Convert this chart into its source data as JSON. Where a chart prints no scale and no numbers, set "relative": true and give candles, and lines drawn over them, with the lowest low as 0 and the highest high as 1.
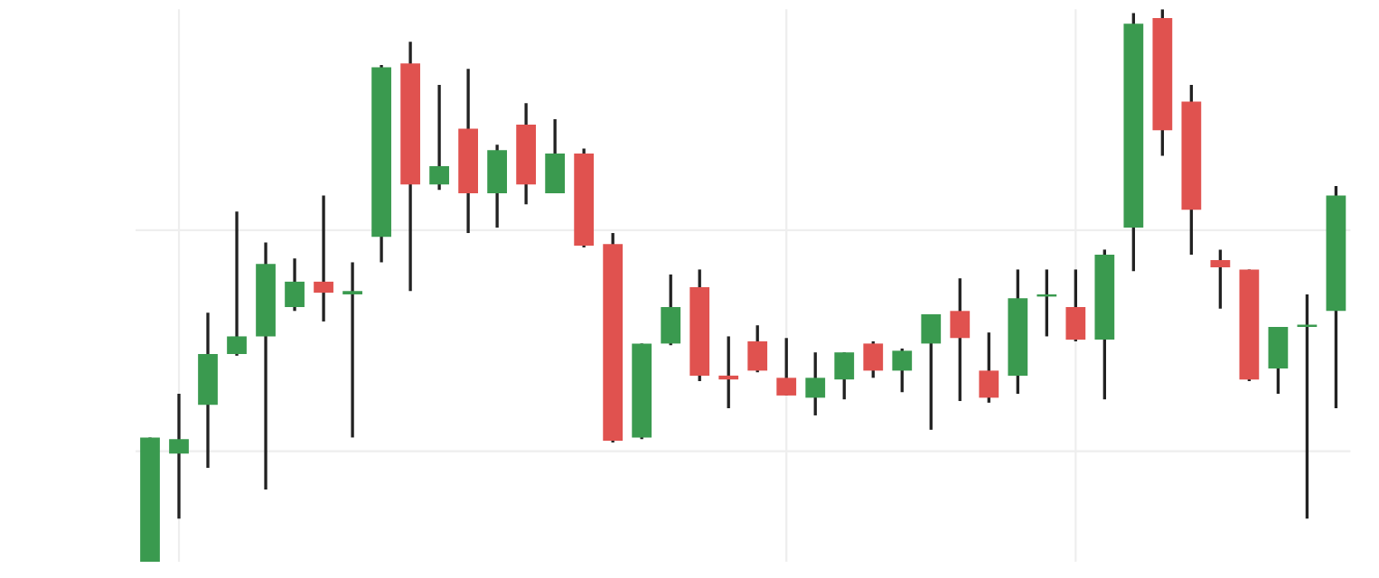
{
  "chart_data": {
    "type": "candlestick",
    "relative": true,
    "grid": true,
    "categories": [
      null,
      null,
      null,
      null,
      null,
      null,
      null,
      null,
      null,
      null,
      null,
      null,
      null,
      null,
      null,
      null,
      null,
      null,
      null,
      null,
      null,
      null,
      null,
      null,
      null,
      null,
      null,
      null,
      null,
      null,
      null,
      null,
      null,
      null,
      null,
      null,
      null,
      null,
      null,
      null,
      null,
      null
    ],
    "ohlc": [
      [
        0,
        0.225,
        0,
        0.225
      ],
      [
        0.196,
        0.304,
        0.078,
        0.222
      ],
      [
        0.284,
        0.451,
        0.17,
        0.376
      ],
      [
        0.376,
        0.634,
        0.373,
        0.408
      ],
      [
        0.408,
        0.578,
        0.131,
        0.539
      ],
      [
        0.461,
        0.549,
        0.454,
        0.507
      ],
      [
        0.507,
        0.663,
        0.435,
        0.487
      ],
      [
        0.484,
        0.542,
        0.225,
        0.49
      ],
      [
        0.588,
        0.899,
        0.542,
        0.895
      ],
      [
        0.902,
        0.941,
        0.49,
        0.683
      ],
      [
        0.683,
        0.863,
        0.673,
        0.716
      ],
      [
        0.784,
        0.892,
        0.595,
        0.667
      ],
      [
        0.667,
        0.755,
        0.605,
        0.745
      ],
      [
        0.791,
        0.83,
        0.647,
        0.683
      ],
      [
        0.667,
        0.801,
        0.667,
        0.739
      ],
      [
        0.739,
        0.748,
        0.569,
        0.572
      ],
      [
        0.575,
        0.595,
        0.216,
        0.219
      ],
      [
        0.225,
        0.395,
        0.222,
        0.395
      ],
      [
        0.395,
        0.52,
        0.392,
        0.461
      ],
      [
        0.497,
        0.529,
        0.327,
        0.337
      ],
      [
        0.337,
        0.408,
        0.278,
        0.33
      ],
      [
        0.399,
        0.428,
        0.343,
        0.346
      ],
      [
        0.333,
        0.405,
        0.301,
        0.301
      ],
      [
        0.297,
        0.379,
        0.265,
        0.333
      ],
      [
        0.33,
        0.379,
        0.294,
        0.379
      ],
      [
        0.395,
        0.399,
        0.333,
        0.346
      ],
      [
        0.346,
        0.386,
        0.307,
        0.382
      ],
      [
        0.395,
        0.448,
        0.239,
        0.448
      ],
      [
        0.454,
        0.513,
        0.291,
        0.405
      ],
      [
        0.346,
        0.415,
        0.288,
        0.297
      ],
      [
        0.337,
        0.529,
        0.304,
        0.477
      ],
      [
        0.48,
        0.529,
        0.408,
        0.484
      ],
      [
        0.461,
        0.529,
        0.399,
        0.402
      ],
      [
        0.402,
        0.565,
        0.294,
        0.556
      ],
      [
        0.605,
        0.993,
        0.526,
        0.974
      ],
      [
        0.984,
        1.0,
        0.735,
        0.781
      ],
      [
        0.833,
        0.863,
        0.556,
        0.637
      ],
      [
        0.546,
        0.565,
        0.458,
        0.533
      ],
      [
        0.529,
        0.529,
        0.327,
        0.33
      ],
      [
        0.35,
        0.425,
        0.304,
        0.425
      ],
      [
        0.425,
        0.484,
        0.078,
        0.428
      ],
      [
        0.454,
        0.68,
        0.278,
        0.663
      ]
    ],
    "colors": [
      "#3a9a4f",
      "#3a9a4f",
      "#3a9a4f",
      "#3a9a4f",
      "#3a9a4f",
      "#3a9a4f",
      "#e0524f",
      "#3a9a4f",
      "#3a9a4f",
      "#e0524f",
      "#3a9a4f",
      "#e0524f",
      "#3a9a4f",
      "#e0524f",
      "#3a9a4f",
      "#e0524f",
      "#e0524f",
      "#3a9a4f",
      "#3a9a4f",
      "#e0524f",
      "#e0524f",
      "#e0524f",
      "#e0524f",
      "#3a9a4f",
      "#3a9a4f",
      "#e0524f",
      "#3a9a4f",
      "#3a9a4f",
      "#e0524f",
      "#e0524f",
      "#3a9a4f",
      "#3a9a4f",
      "#e0524f",
      "#3a9a4f",
      "#3a9a4f",
      "#e0524f",
      "#e0524f",
      "#e0524f",
      "#e0524f",
      "#3a9a4f",
      "#3a9a4f",
      "#3a9a4f"
    ]
  }
}
